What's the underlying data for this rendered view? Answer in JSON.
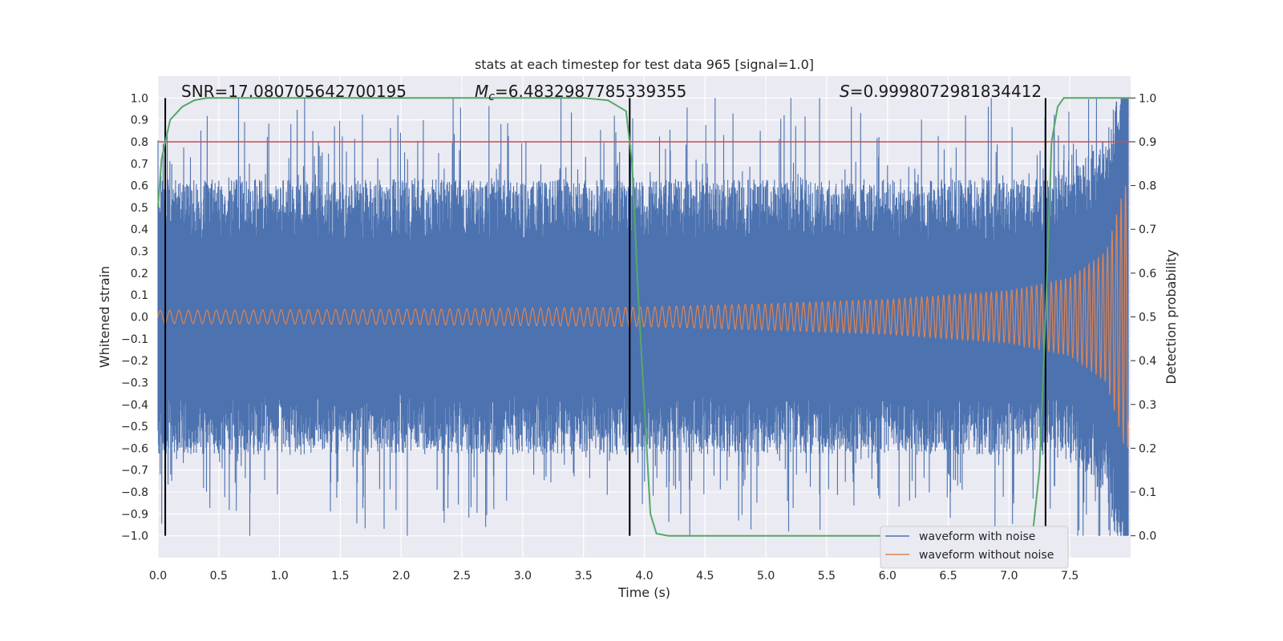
{
  "chart_data": {
    "type": "line",
    "title": "stats at each timestep for test data 965 [signal=1.0]",
    "xlabel": "Time (s)",
    "ylabel": "Whitened strain",
    "y2label": "Detection probability",
    "xlim": [
      0.0,
      8.0
    ],
    "ylim": [
      -1.1,
      1.1
    ],
    "y2lim": [
      -0.05,
      1.05
    ],
    "xticks": [
      "0.0",
      "0.5",
      "1.0",
      "1.5",
      "2.0",
      "2.5",
      "3.0",
      "3.5",
      "4.0",
      "4.5",
      "5.0",
      "5.5",
      "6.0",
      "6.5",
      "7.0",
      "7.5"
    ],
    "yticks": [
      "1.0",
      "0.9",
      "0.8",
      "0.7",
      "0.6",
      "0.5",
      "0.4",
      "0.3",
      "0.2",
      "0.1",
      "0.0",
      "−0.1",
      "−0.2",
      "−0.3",
      "−0.4",
      "−0.5",
      "−0.6",
      "−0.7",
      "−0.8",
      "−0.9",
      "−1.0"
    ],
    "y2ticks": [
      "1.0",
      "0.9",
      "0.8",
      "0.7",
      "0.6",
      "0.5",
      "0.4",
      "0.3",
      "0.2",
      "0.1",
      "0.0"
    ],
    "grid": true,
    "series": [
      {
        "name": "waveform with noise",
        "color": "#4c72b0",
        "amplitude_band": [
          -1.0,
          1.0
        ]
      },
      {
        "name": "waveform without noise",
        "color": "#dd8452",
        "envelope": {
          "x": [
            0.0,
            2.0,
            4.0,
            5.0,
            6.0,
            7.0,
            7.5,
            7.8,
            7.95
          ],
          "y": [
            0.03,
            0.035,
            0.045,
            0.06,
            0.08,
            0.12,
            0.18,
            0.3,
            0.6
          ]
        }
      },
      {
        "axis": "right",
        "color": "#55a868",
        "x": [
          0.0,
          0.03,
          0.06,
          0.1,
          0.2,
          0.3,
          0.4,
          0.6,
          1.0,
          2.0,
          3.0,
          3.5,
          3.7,
          3.85,
          3.9,
          3.95,
          4.0,
          4.05,
          4.1,
          4.2,
          5.0,
          6.0,
          7.0,
          7.2,
          7.25,
          7.3,
          7.35,
          7.4,
          7.45,
          7.5,
          7.6,
          8.0
        ],
        "y": [
          0.75,
          0.86,
          0.9,
          0.95,
          0.98,
          0.995,
          1.0,
          1.0,
          1.0,
          1.0,
          1.0,
          1.0,
          0.995,
          0.97,
          0.85,
          0.55,
          0.3,
          0.05,
          0.005,
          0.0,
          0.0,
          0.0,
          0.0,
          0.02,
          0.15,
          0.5,
          0.9,
          0.98,
          1.0,
          1.0,
          1.0,
          1.0
        ]
      }
    ],
    "hlines": [
      {
        "y": 0.8,
        "color": "#c44e52"
      }
    ],
    "vlines": [
      {
        "x": 0.06,
        "color": "#000000"
      },
      {
        "x": 3.88,
        "color": "#000000"
      },
      {
        "x": 7.3,
        "color": "#000000"
      }
    ],
    "annotations": {
      "snr": "SNR=17.080705642700195",
      "mc_symbol": "M",
      "mc_sub": "c",
      "mc_value": "=6.4832987785339355",
      "s_symbol": "S",
      "s_value": "=0.9998072981834412"
    },
    "legend": {
      "position": "lower-right"
    }
  }
}
